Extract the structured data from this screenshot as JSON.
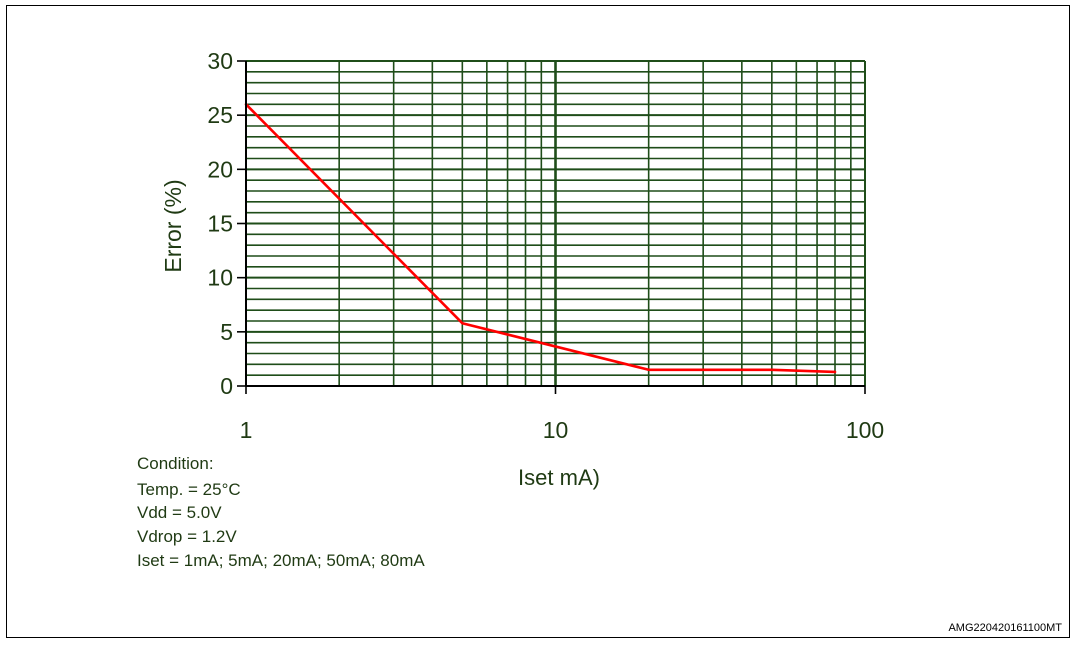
{
  "chart_data": {
    "type": "line",
    "x_scale": "log",
    "xlabel": "Iset mA)",
    "ylabel": "Error (%)",
    "xlim": [
      1,
      100
    ],
    "ylim": [
      0,
      30
    ],
    "x_ticks": [
      "1",
      "10",
      "100"
    ],
    "y_ticks": [
      "0",
      "5",
      "10",
      "15",
      "20",
      "25",
      "30"
    ],
    "x_tick_values": [
      1,
      10,
      100
    ],
    "y_tick_values": [
      0,
      5,
      10,
      15,
      20,
      25,
      30
    ],
    "x_minor_gridlines": [
      2,
      3,
      4,
      5,
      6,
      7,
      8,
      9,
      20,
      30,
      40,
      50,
      60,
      70,
      80,
      90
    ],
    "y_gridline_step": 1,
    "grid": true,
    "series": [
      {
        "x": [
          1,
          5,
          20,
          50,
          80
        ],
        "y": [
          26,
          5.8,
          1.5,
          1.5,
          1.3
        ]
      }
    ]
  },
  "colors": {
    "grid": "#1f4d19",
    "line": "#ff0000",
    "text": "#1f3a13"
  },
  "conditions": {
    "heading": "Condition:",
    "temp": "Temp. = 25°C",
    "vdd": "Vdd = 5.0V",
    "vdrop": "Vdrop = 1.2V",
    "iset": "Iset = 1mA; 5mA; 20mA; 50mA; 80mA"
  },
  "reference_code": "AMG220420161100MT"
}
